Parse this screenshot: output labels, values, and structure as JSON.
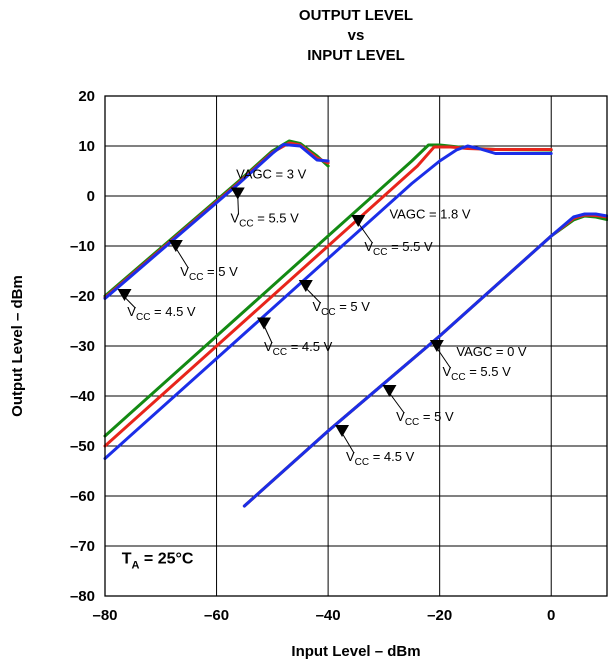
{
  "chart_data": {
    "type": "line",
    "title": [
      "OUTPUT LEVEL",
      "vs",
      "INPUT LEVEL"
    ],
    "xlabel": "Input Level – dBm",
    "ylabel": "Output Level – dBm",
    "xlim": [
      -80,
      10
    ],
    "ylim": [
      -80,
      20
    ],
    "xticks": [
      -80,
      -60,
      -40,
      -20,
      0
    ],
    "xtick_labels": [
      "–80",
      "–60",
      "–40",
      "–20",
      "0"
    ],
    "yticks": [
      -80,
      -70,
      -60,
      -50,
      -40,
      -30,
      -20,
      -10,
      0,
      10,
      20
    ],
    "ytick_labels": [
      "–80",
      "–70",
      "–60",
      "–50",
      "–40",
      "–30",
      "–20",
      "–10",
      "0",
      "10",
      "20"
    ],
    "grid": true,
    "colors": {
      "vcc_4_5": "#1b2ee8",
      "vcc_5": "#e8251b",
      "vcc_5_5": "#138a13"
    },
    "series": [
      {
        "group": "VAGC = 3 V",
        "supply": "5.5 V",
        "color": "#138a13",
        "x": [
          -80,
          -56,
          -50,
          -47,
          -45,
          -42,
          -40
        ],
        "y": [
          -20,
          3,
          9,
          11,
          10.5,
          8,
          6
        ]
      },
      {
        "group": "VAGC = 3 V",
        "supply": "5 V",
        "color": "#e8251b",
        "x": [
          -80,
          -56,
          -50,
          -47,
          -45,
          -42,
          -40
        ],
        "y": [
          -20.3,
          2.7,
          8.7,
          10.6,
          10.2,
          7.6,
          6.6
        ]
      },
      {
        "group": "VAGC = 3 V",
        "supply": "4.5 V",
        "color": "#1b2ee8",
        "x": [
          -80,
          -56,
          -50,
          -48,
          -45,
          -42,
          -40
        ],
        "y": [
          -20.5,
          2.5,
          8.5,
          10.3,
          10,
          7.2,
          7
        ]
      },
      {
        "group": "VAGC = 1.8 V",
        "supply": "5.5 V",
        "color": "#138a13",
        "x": [
          -80,
          -60,
          -40,
          -25,
          -22,
          -20,
          -15,
          -10,
          0
        ],
        "y": [
          -48,
          -28,
          -8,
          7,
          10.2,
          10.2,
          9.6,
          9.3,
          9.2
        ]
      },
      {
        "group": "VAGC = 1.8 V",
        "supply": "5 V",
        "color": "#e8251b",
        "x": [
          -80,
          -60,
          -40,
          -24,
          -21,
          -18,
          -15,
          -10,
          0
        ],
        "y": [
          -50,
          -30,
          -10,
          6,
          9.8,
          9.8,
          9.5,
          9.3,
          9.3
        ]
      },
      {
        "group": "VAGC = 1.8 V",
        "supply": "4.5 V",
        "color": "#1b2ee8",
        "x": [
          -80,
          -60,
          -40,
          -25,
          -20,
          -17,
          -15,
          -13,
          -10,
          -5,
          0
        ],
        "y": [
          -52.5,
          -32.5,
          -12.5,
          2.5,
          7,
          9.2,
          10,
          9.5,
          8.5,
          8.5,
          8.5
        ]
      },
      {
        "group": "VAGC = 0 V",
        "supply": "5.5 V",
        "color": "#138a13",
        "x": [
          -55,
          -40,
          -20,
          0,
          4,
          6,
          8,
          10
        ],
        "y": [
          -62,
          -47,
          -28,
          -8,
          -4.8,
          -4,
          -4.2,
          -4.7
        ]
      },
      {
        "group": "VAGC = 0 V",
        "supply": "5 V",
        "color": "#e8251b",
        "x": [
          -55,
          -40,
          -20,
          0,
          4,
          6,
          8,
          10
        ],
        "y": [
          -62,
          -47,
          -28,
          -8,
          -4.5,
          -3.8,
          -3.9,
          -4.2
        ]
      },
      {
        "group": "VAGC = 0 V",
        "supply": "4.5 V",
        "color": "#1b2ee8",
        "x": [
          -55,
          -40,
          -20,
          0,
          4,
          6,
          8,
          10
        ],
        "y": [
          -62,
          -47,
          -28,
          -8,
          -4.2,
          -3.6,
          -3.6,
          -4
        ]
      }
    ],
    "annotations": [
      {
        "text": "VAGC = 3 V",
        "x": -56.5,
        "y": 3.5
      },
      {
        "text": "VAGC = 1.8 V",
        "x": -29,
        "y": -4.5
      },
      {
        "text": "VAGC = 0 V",
        "x": -17,
        "y": -32
      },
      {
        "text": "T",
        "sub": "A",
        "suffix": " = 25°C",
        "x": -77,
        "y": -73.5
      }
    ],
    "callouts": [
      {
        "text": "V",
        "sub": "CC",
        "suffix": " = 5.5 V",
        "mx": -56.2,
        "my": 0.5,
        "tx": -57.5,
        "ty": -4.5
      },
      {
        "text": "V",
        "sub": "CC",
        "suffix": " = 5 V",
        "mx": -67.3,
        "my": -10,
        "tx": -66.5,
        "ty": -15.2
      },
      {
        "text": "V",
        "sub": "CC",
        "suffix": " = 4.5 V",
        "mx": -76.5,
        "my": -19.8,
        "tx": -76,
        "ty": -23.2
      },
      {
        "text": "V",
        "sub": "CC",
        "suffix": " = 5.5 V",
        "mx": -34.6,
        "my": -5,
        "tx": -33.5,
        "ty": -10.2
      },
      {
        "text": "V",
        "sub": "CC",
        "suffix": " = 5 V",
        "mx": -44,
        "my": -18,
        "tx": -42.8,
        "ty": -22.2
      },
      {
        "text": "V",
        "sub": "CC",
        "suffix": " = 4.5 V",
        "mx": -51.5,
        "my": -25.5,
        "tx": -51.5,
        "ty": -30.2
      },
      {
        "text": "V",
        "sub": "CC",
        "suffix": " = 5.5 V",
        "mx": -20.5,
        "my": -30,
        "tx": -19.5,
        "ty": -35.2
      },
      {
        "text": "V",
        "sub": "CC",
        "suffix": " = 5 V",
        "mx": -29,
        "my": -39,
        "tx": -27.8,
        "ty": -44.2
      },
      {
        "text": "V",
        "sub": "CC",
        "suffix": " = 4.5 V",
        "mx": -37.5,
        "my": -47,
        "tx": -36.8,
        "ty": -52.2
      }
    ]
  }
}
